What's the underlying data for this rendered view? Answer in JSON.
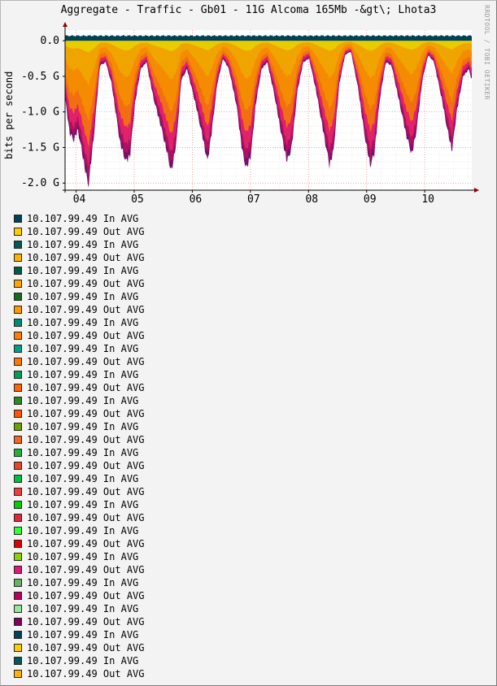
{
  "chart_data": {
    "type": "area",
    "title": "Aggregate - Traffic - Gb01 - 11G Alcoma 165Mb -&gt\\; Lhota3",
    "ylabel": "bits per second",
    "watermark": "RRDTOOL / TOBI OETIKER",
    "y_ticks": [
      {
        "value": 0.0,
        "label": "0.0"
      },
      {
        "value": -0.5,
        "label": "-0.5 G"
      },
      {
        "value": -1.0,
        "label": "-1.0 G"
      },
      {
        "value": -1.5,
        "label": "-1.5 G"
      },
      {
        "value": -2.0,
        "label": "-2.0 G"
      }
    ],
    "ylim": [
      -2.1,
      0.15
    ],
    "x_ticks": [
      {
        "value": 0.19,
        "label": "04"
      },
      {
        "value": 1.19,
        "label": "05"
      },
      {
        "value": 2.19,
        "label": "06"
      },
      {
        "value": 3.19,
        "label": "07"
      },
      {
        "value": 4.19,
        "label": "08"
      },
      {
        "value": 5.19,
        "label": "09"
      },
      {
        "value": 6.19,
        "label": "10"
      }
    ],
    "xlim": [
      0,
      7.0
    ],
    "in_level": 0.07,
    "out_envelope": [
      [
        0.0,
        -0.8
      ],
      [
        0.08,
        -1.3
      ],
      [
        0.15,
        -1.4
      ],
      [
        0.22,
        -1.25
      ],
      [
        0.3,
        -1.6
      ],
      [
        0.4,
        -2.05
      ],
      [
        0.5,
        -1.3
      ],
      [
        0.6,
        -0.35
      ],
      [
        0.7,
        -0.3
      ],
      [
        0.8,
        -0.6
      ],
      [
        0.95,
        -1.45
      ],
      [
        1.05,
        -1.7
      ],
      [
        1.12,
        -1.6
      ],
      [
        1.2,
        -0.9
      ],
      [
        1.3,
        -0.4
      ],
      [
        1.4,
        -0.3
      ],
      [
        1.52,
        -0.8
      ],
      [
        1.65,
        -1.2
      ],
      [
        1.75,
        -1.55
      ],
      [
        1.83,
        -1.85
      ],
      [
        1.92,
        -1.4
      ],
      [
        2.0,
        -0.55
      ],
      [
        2.1,
        -0.4
      ],
      [
        2.25,
        -0.9
      ],
      [
        2.38,
        -1.4
      ],
      [
        2.45,
        -1.7
      ],
      [
        2.52,
        -1.3
      ],
      [
        2.62,
        -0.6
      ],
      [
        2.72,
        -0.25
      ],
      [
        2.82,
        -0.4
      ],
      [
        2.95,
        -0.9
      ],
      [
        3.05,
        -1.55
      ],
      [
        3.12,
        -1.8
      ],
      [
        3.2,
        -1.6
      ],
      [
        3.28,
        -0.9
      ],
      [
        3.38,
        -0.4
      ],
      [
        3.48,
        -0.3
      ],
      [
        3.6,
        -0.75
      ],
      [
        3.72,
        -1.3
      ],
      [
        3.82,
        -1.7
      ],
      [
        3.9,
        -1.5
      ],
      [
        4.0,
        -0.7
      ],
      [
        4.1,
        -0.3
      ],
      [
        4.2,
        -0.25
      ],
      [
        4.32,
        -0.7
      ],
      [
        4.45,
        -1.3
      ],
      [
        4.55,
        -1.75
      ],
      [
        4.62,
        -1.55
      ],
      [
        4.72,
        -0.6
      ],
      [
        4.82,
        -0.2
      ],
      [
        4.92,
        -0.15
      ],
      [
        5.05,
        -0.7
      ],
      [
        5.15,
        -1.3
      ],
      [
        5.25,
        -1.75
      ],
      [
        5.32,
        -1.6
      ],
      [
        5.42,
        -0.8
      ],
      [
        5.52,
        -0.3
      ],
      [
        5.62,
        -0.35
      ],
      [
        5.75,
        -0.85
      ],
      [
        5.88,
        -1.35
      ],
      [
        5.97,
        -1.6
      ],
      [
        6.05,
        -1.25
      ],
      [
        6.15,
        -0.55
      ],
      [
        6.25,
        -0.2
      ],
      [
        6.35,
        -0.3
      ],
      [
        6.48,
        -0.8
      ],
      [
        6.58,
        -1.25
      ],
      [
        6.66,
        -1.55
      ],
      [
        6.74,
        -1.0
      ],
      [
        6.85,
        -0.5
      ],
      [
        6.95,
        -0.4
      ],
      [
        7.0,
        -0.55
      ]
    ],
    "layers": [
      {
        "fraction": 0.08,
        "color": "#e8cc00"
      },
      {
        "fraction": 0.3,
        "color": "#f0a400"
      },
      {
        "fraction": 0.55,
        "color": "#f58b00"
      },
      {
        "fraction": 0.72,
        "color": "#f26e12"
      },
      {
        "fraction": 0.86,
        "color": "#e0226a"
      },
      {
        "fraction": 0.94,
        "color": "#b01060"
      },
      {
        "fraction": 1.0,
        "color": "#77106a"
      }
    ],
    "series": [
      {
        "name": "10.107.99.49 In AVG",
        "color": "#004359"
      },
      {
        "name": "10.107.99.49 Out AVG",
        "color": "#ffcc00"
      },
      {
        "name": "10.107.99.49 In AVG",
        "color": "#005959"
      },
      {
        "name": "10.107.99.49 Out AVG",
        "color": "#ffb300"
      },
      {
        "name": "10.107.99.49 In AVG",
        "color": "#005c45"
      },
      {
        "name": "10.107.99.49 Out AVG",
        "color": "#ffa600"
      },
      {
        "name": "10.107.99.49 In AVG",
        "color": "#146b1d"
      },
      {
        "name": "10.107.99.49 Out AVG",
        "color": "#ff9900"
      },
      {
        "name": "10.107.99.49 In AVG",
        "color": "#008c6e"
      },
      {
        "name": "10.107.99.49 Out AVG",
        "color": "#ff8000"
      },
      {
        "name": "10.107.99.49 In AVG",
        "color": "#00a085"
      },
      {
        "name": "10.107.99.49 Out AVG",
        "color": "#ff7a00"
      },
      {
        "name": "10.107.99.49 In AVG",
        "color": "#00a050"
      },
      {
        "name": "10.107.99.49 Out AVG",
        "color": "#ff6600"
      },
      {
        "name": "10.107.99.49 In AVG",
        "color": "#2b8a1e"
      },
      {
        "name": "10.107.99.49 Out AVG",
        "color": "#ff5500"
      },
      {
        "name": "10.107.99.49 In AVG",
        "color": "#6ba100"
      },
      {
        "name": "10.107.99.49 Out AVG",
        "color": "#f26522"
      },
      {
        "name": "10.107.99.49 In AVG",
        "color": "#1fb52e"
      },
      {
        "name": "10.107.99.49 Out AVG",
        "color": "#e04826"
      },
      {
        "name": "10.107.99.49 In AVG",
        "color": "#00c040"
      },
      {
        "name": "10.107.99.49 Out AVG",
        "color": "#f23c3c"
      },
      {
        "name": "10.107.99.49 In AVG",
        "color": "#00d000"
      },
      {
        "name": "10.107.99.49 Out AVG",
        "color": "#e6243a"
      },
      {
        "name": "10.107.99.49 In AVG",
        "color": "#33ff33"
      },
      {
        "name": "10.107.99.49 Out AVG",
        "color": "#e00000"
      },
      {
        "name": "10.107.99.49 In AVG",
        "color": "#88d400"
      },
      {
        "name": "10.107.99.49 Out AVG",
        "color": "#e0167a"
      },
      {
        "name": "10.107.99.49 In AVG",
        "color": "#66b266"
      },
      {
        "name": "10.107.99.49 Out AVG",
        "color": "#b8005c"
      },
      {
        "name": "10.107.99.49 In AVG",
        "color": "#99e699"
      },
      {
        "name": "10.107.99.49 Out AVG",
        "color": "#80005c"
      },
      {
        "name": "10.107.99.49 In AVG",
        "color": "#004359"
      },
      {
        "name": "10.107.99.49 Out AVG",
        "color": "#ffcc00"
      },
      {
        "name": "10.107.99.49 In AVG",
        "color": "#005959"
      },
      {
        "name": "10.107.99.49 Out AVG",
        "color": "#ffb300"
      }
    ]
  }
}
